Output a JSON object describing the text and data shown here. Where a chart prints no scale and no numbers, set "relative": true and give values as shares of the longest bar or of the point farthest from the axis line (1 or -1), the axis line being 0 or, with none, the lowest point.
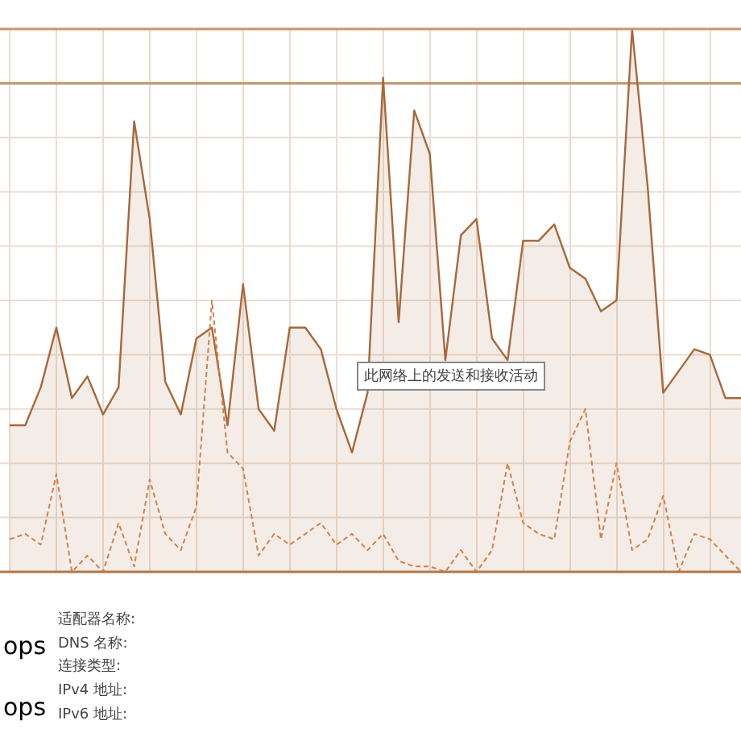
{
  "chart_data": {
    "type": "area",
    "relative": true,
    "grid": true,
    "categories": [
      null,
      null,
      null,
      null,
      null,
      null,
      null,
      null,
      null,
      null,
      null,
      null,
      null,
      null,
      null,
      null,
      null,
      null,
      null,
      null,
      null,
      null,
      null,
      null,
      null,
      null,
      null,
      null,
      null,
      null,
      null,
      null,
      null,
      null,
      null,
      null,
      null,
      null,
      null,
      null,
      null,
      null,
      null,
      null,
      null,
      null,
      null,
      null
    ],
    "series": [
      {
        "color": "#a8683a",
        "values": [
          0.27,
          0.27,
          0.34,
          0.45,
          0.32,
          0.36,
          0.29,
          0.34,
          0.83,
          0.65,
          0.35,
          0.29,
          0.43,
          0.45,
          0.27,
          0.53,
          0.3,
          0.26,
          0.45,
          0.45,
          0.41,
          0.3,
          0.22,
          0.33,
          0.91,
          0.46,
          0.85,
          0.77,
          0.39,
          0.62,
          0.65,
          0.43,
          0.39,
          0.61,
          0.61,
          0.64,
          0.56,
          0.54,
          0.48,
          0.5,
          1.0,
          0.71,
          0.33,
          0.37,
          0.41,
          0.4,
          0.32,
          0.32
        ]
      },
      {
        "type": "line",
        "line_style": "dashed",
        "color": "#d4804a",
        "values": [
          0.06,
          0.07,
          0.05,
          0.18,
          0,
          0.03,
          0,
          0.09,
          0.01,
          0.17,
          0.07,
          0.04,
          0.12,
          0.5,
          0.22,
          0.19,
          0.03,
          0.07,
          0.05,
          0.07,
          0.09,
          0.05,
          0.07,
          0.04,
          0.07,
          0.02,
          0.01,
          0.01,
          0,
          0.04,
          0,
          0.04,
          0.2,
          0.09,
          0.07,
          0.06,
          0.24,
          0.3,
          0.06,
          0.2,
          0.04,
          0.06,
          0.14,
          0,
          0.07,
          0.06,
          0.03,
          0
        ]
      }
    ],
    "ref_lines": [
      {
        "axis": "y",
        "value": 0.9,
        "color": "#c8956a"
      }
    ],
    "annotations": [
      "此网络上的发送和接收活动",
      "ops",
      "ops",
      "适配器名称:",
      "DNS 名称:",
      "连接类型:",
      "IPv4 地址:",
      "IPv6 地址:"
    ]
  }
}
